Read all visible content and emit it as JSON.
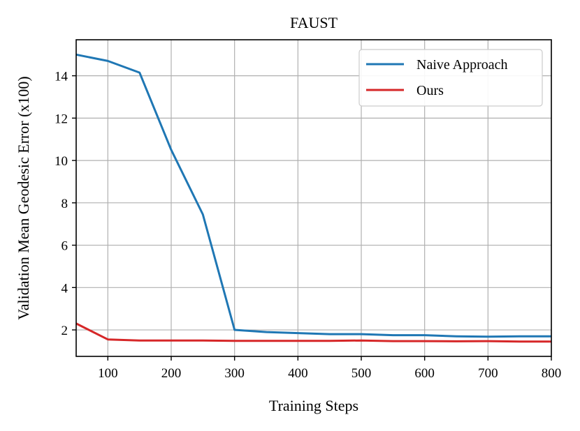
{
  "chart_data": {
    "type": "line",
    "title": "FAUST",
    "xlabel": "Training Steps",
    "ylabel": "Validation Mean Geodesic Error (x100)",
    "xlim": [
      50,
      800
    ],
    "ylim": [
      0.75,
      15.7
    ],
    "x_ticks": [
      100,
      200,
      300,
      400,
      500,
      600,
      700,
      800
    ],
    "y_ticks": [
      2,
      4,
      6,
      8,
      10,
      12,
      14
    ],
    "grid": true,
    "legend_position": "top-right",
    "x": [
      50,
      100,
      150,
      200,
      250,
      300,
      350,
      400,
      450,
      500,
      550,
      600,
      650,
      700,
      750,
      800
    ],
    "series": [
      {
        "name": "Naive Approach",
        "color": "#1f77b4",
        "values": [
          15.0,
          14.7,
          14.15,
          10.5,
          7.45,
          2.0,
          1.9,
          1.85,
          1.8,
          1.8,
          1.75,
          1.75,
          1.7,
          1.68,
          1.7,
          1.7
        ]
      },
      {
        "name": "Ours",
        "color": "#d62728",
        "values": [
          2.3,
          1.55,
          1.5,
          1.5,
          1.5,
          1.48,
          1.48,
          1.48,
          1.48,
          1.5,
          1.47,
          1.47,
          1.46,
          1.47,
          1.45,
          1.45
        ]
      }
    ]
  }
}
